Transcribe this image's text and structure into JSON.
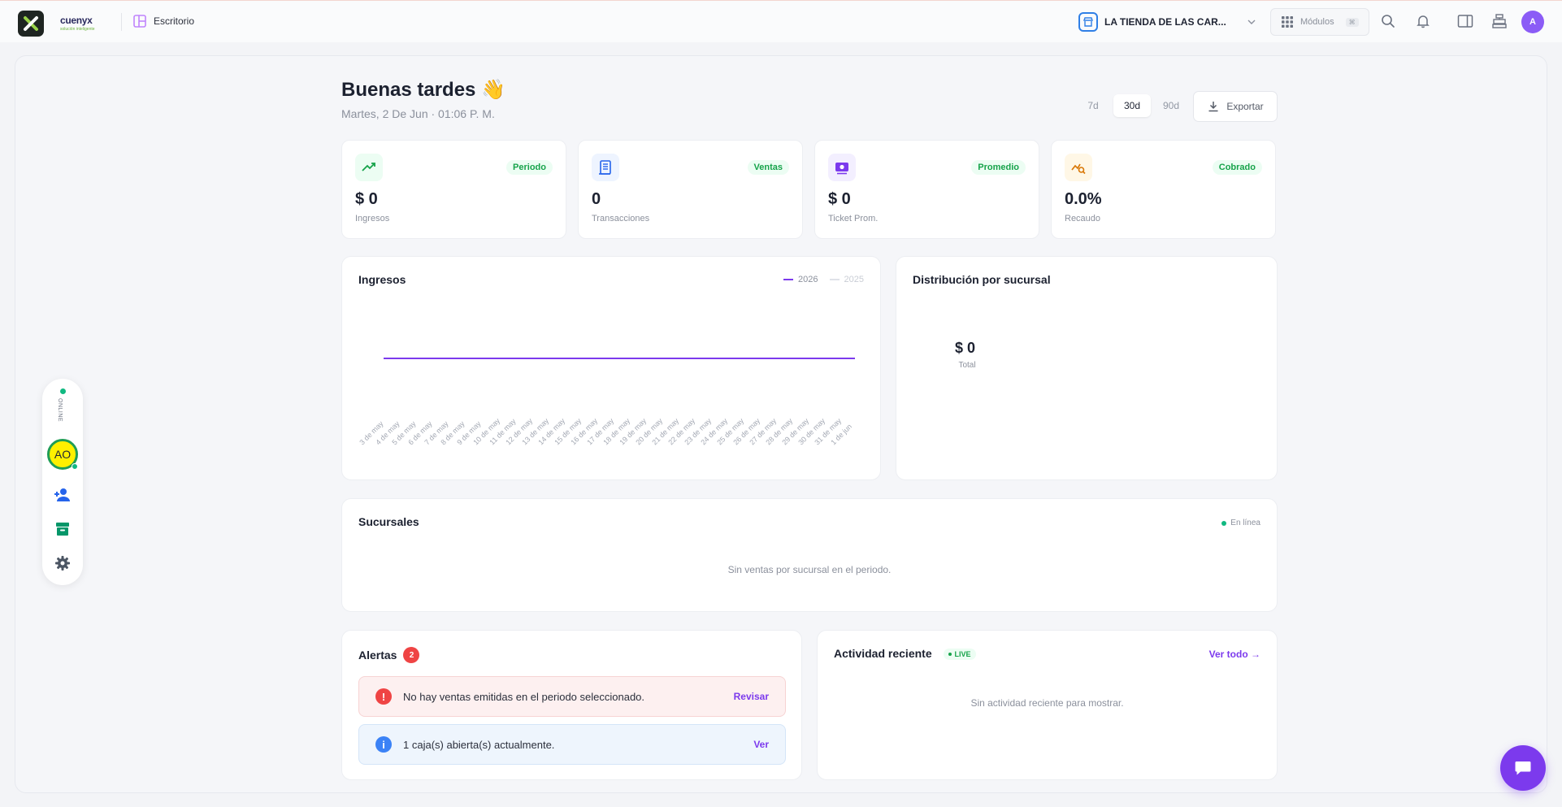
{
  "header": {
    "brand_name": "cuenyx",
    "brand_tagline": "solución inteligente",
    "breadcrumb": "Escritorio",
    "store_name": "LA TIENDA DE LAS CAR...",
    "modules_label": "Módulos",
    "modules_shortcut": "⌘",
    "user_initial": "A"
  },
  "dashboard": {
    "greeting": "Buenas tardes 👋",
    "date": "Martes, 2 De Jun · 01:06 P. M.",
    "ranges": [
      "7d",
      "30d",
      "90d"
    ],
    "active_range": "30d",
    "export_label": "Exportar"
  },
  "kpis": [
    {
      "tag": "Periodo",
      "value": "$ 0",
      "label": "Ingresos",
      "icon": "trend-up-icon",
      "color": "#16a34a",
      "bg": "#ecfdf3"
    },
    {
      "tag": "Ventas",
      "value": "0",
      "label": "Transacciones",
      "icon": "receipt-icon",
      "color": "#2563eb",
      "bg": "#eef4ff"
    },
    {
      "tag": "Promedio",
      "value": "$ 0",
      "label": "Ticket Prom.",
      "icon": "ticket-icon",
      "color": "#7c3aed",
      "bg": "#f3efff"
    },
    {
      "tag": "Cobrado",
      "value": "0.0%",
      "label": "Recaudo",
      "icon": "chart-search-icon",
      "color": "#d97706",
      "bg": "#fff7e6"
    }
  ],
  "ingresos": {
    "title": "Ingresos",
    "legend_current": "2026",
    "legend_previous": "2025"
  },
  "chart_data": {
    "type": "line",
    "title": "Ingresos",
    "categories": [
      "3 de may",
      "4 de may",
      "5 de may",
      "6 de may",
      "7 de may",
      "8 de may",
      "9 de may",
      "10 de may",
      "11 de may",
      "12 de may",
      "13 de may",
      "14 de may",
      "15 de may",
      "16 de may",
      "17 de may",
      "18 de may",
      "19 de may",
      "20 de may",
      "21 de may",
      "22 de may",
      "23 de may",
      "24 de may",
      "25 de may",
      "26 de may",
      "27 de may",
      "28 de may",
      "29 de may",
      "30 de may",
      "31 de may",
      "1 de jun"
    ],
    "series": [
      {
        "name": "2026",
        "color": "#7c3aed",
        "values": [
          0,
          0,
          0,
          0,
          0,
          0,
          0,
          0,
          0,
          0,
          0,
          0,
          0,
          0,
          0,
          0,
          0,
          0,
          0,
          0,
          0,
          0,
          0,
          0,
          0,
          0,
          0,
          0,
          0,
          0
        ]
      }
    ],
    "legend": [
      "2026",
      "2025"
    ],
    "grid": false
  },
  "distribucion": {
    "title": "Distribución por sucursal",
    "total_value": "$ 0",
    "total_label": "Total"
  },
  "sucursales": {
    "title": "Sucursales",
    "status": "En línea",
    "empty_text": "Sin ventas por sucursal en el periodo."
  },
  "alertas": {
    "title": "Alertas",
    "count": "2",
    "items": [
      {
        "text": "No hay ventas emitidas en el periodo seleccionado.",
        "action": "Revisar",
        "symbol": "!",
        "color": "#ef4444",
        "bg": "#fdf0f0",
        "border": "#f7d3d3"
      },
      {
        "text": "1 caja(s) abierta(s) actualmente.",
        "action": "Ver",
        "symbol": "i",
        "color": "#3b82f6",
        "bg": "#eef5fd",
        "border": "#d4e5f8"
      }
    ]
  },
  "actividad": {
    "title": "Actividad reciente",
    "live_label": "LIVE",
    "link": "Ver todo →",
    "empty_text": "Sin actividad reciente para mostrar."
  },
  "sidebar": {
    "status": "ONLINE",
    "avatar_initials": "AO"
  }
}
